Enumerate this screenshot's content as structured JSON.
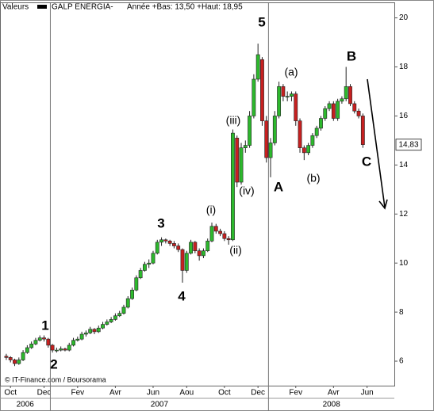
{
  "chart_data": {
    "type": "candlestick",
    "header": {
      "label": "Valeurs",
      "name": "GALP ENERGIA-",
      "range_text": "Année +Bas: 13,50 +Haut: 18,95"
    },
    "credit": "© IT-Finance.com / Boursorama",
    "last_price_label": "14,83",
    "up_color": "#2db82d",
    "down_color": "#c62020",
    "categories": [
      null,
      null,
      "Oct",
      null,
      null,
      null,
      null,
      null,
      null,
      null,
      "Dec",
      null,
      null,
      null,
      null,
      null,
      null,
      null,
      "Fev",
      null,
      null,
      null,
      null,
      null,
      null,
      null,
      null,
      "Avr",
      null,
      null,
      null,
      null,
      null,
      null,
      null,
      null,
      "Jun",
      null,
      null,
      null,
      null,
      null,
      null,
      null,
      "Aou",
      null,
      null,
      null,
      null,
      null,
      null,
      null,
      null,
      "Oct",
      null,
      null,
      null,
      null,
      null,
      null,
      null,
      "Dec",
      null,
      null,
      null,
      null,
      null,
      null,
      null,
      null,
      "Fev",
      null,
      null,
      null,
      null,
      null,
      null,
      null,
      null,
      "Avr",
      null,
      null,
      null,
      null,
      null,
      null,
      null,
      "Jun",
      null,
      null,
      null,
      null,
      null,
      null
    ],
    "x_groups": [
      {
        "label": "2006",
        "count": 12
      },
      {
        "label": "2007",
        "count": 52
      },
      {
        "label": "2008",
        "count": 30
      }
    ],
    "open": [
      null,
      6.2,
      6.15,
      6.05,
      5.9,
      6.05,
      6.35,
      6.55,
      6.7,
      6.85,
      6.95,
      6.9,
      6.65,
      6.45,
      6.45,
      6.5,
      6.45,
      6.65,
      6.85,
      6.9,
      7.1,
      7.15,
      7.3,
      7.2,
      7.35,
      7.5,
      7.6,
      7.7,
      7.85,
      7.95,
      8.2,
      8.55,
      8.9,
      9.4,
      9.7,
      9.95,
      10.0,
      10.4,
      10.85,
      10.95,
      10.9,
      10.8,
      10.7,
      10.55,
      9.7,
      10.4,
      10.85,
      10.5,
      10.3,
      10.5,
      10.9,
      11.5,
      11.3,
      11.2,
      11.0,
      10.95,
      15.1,
      13.3,
      14.7,
      14.8,
      16.0,
      17.5,
      18.3,
      15.8,
      14.3,
      14.9,
      16.0,
      17.2,
      16.8,
      16.8,
      16.9,
      15.8,
      14.7,
      14.5,
      14.8,
      15.2,
      15.5,
      15.9,
      16.3,
      16.5,
      15.9,
      16.6,
      16.7,
      17.2,
      16.5,
      16.2,
      16.0,
      null,
      null,
      null,
      null,
      null,
      null,
      null
    ],
    "high": [
      null,
      6.3,
      6.2,
      6.1,
      6.15,
      6.45,
      6.65,
      6.8,
      6.95,
      7.05,
      7.05,
      6.95,
      6.7,
      6.55,
      6.6,
      6.55,
      6.75,
      6.95,
      7.0,
      7.2,
      7.25,
      7.4,
      7.35,
      7.45,
      7.6,
      7.7,
      7.8,
      7.95,
      8.05,
      8.3,
      8.65,
      9.0,
      9.5,
      9.8,
      10.05,
      10.15,
      10.5,
      10.95,
      11.05,
      11.0,
      10.95,
      10.9,
      10.8,
      10.6,
      10.5,
      10.95,
      10.9,
      10.6,
      10.6,
      11.0,
      11.65,
      11.6,
      11.4,
      11.3,
      11.1,
      15.45,
      15.2,
      14.9,
      15.0,
      16.2,
      17.7,
      18.95,
      18.4,
      16.0,
      15.1,
      16.2,
      17.4,
      17.3,
      17.0,
      17.0,
      17.0,
      15.9,
      14.8,
      14.9,
      15.3,
      15.6,
      16.0,
      16.4,
      16.6,
      16.6,
      16.7,
      16.8,
      18.0,
      17.3,
      16.6,
      16.3,
      16.1,
      null,
      null,
      null,
      null,
      null,
      null,
      null
    ],
    "low": [
      null,
      6.05,
      5.95,
      5.8,
      5.85,
      6.0,
      6.3,
      6.5,
      6.65,
      6.8,
      6.8,
      6.55,
      6.35,
      6.35,
      6.4,
      6.4,
      6.4,
      6.6,
      6.8,
      6.85,
      7.0,
      7.1,
      7.1,
      7.15,
      7.3,
      7.45,
      7.55,
      7.65,
      7.8,
      7.9,
      8.15,
      8.5,
      8.85,
      9.35,
      9.65,
      9.8,
      9.95,
      10.35,
      10.7,
      10.8,
      10.7,
      10.6,
      10.45,
      9.2,
      9.6,
      10.35,
      10.4,
      10.1,
      10.2,
      10.45,
      10.85,
      11.2,
      11.1,
      10.9,
      10.75,
      10.9,
      13.1,
      13.2,
      14.5,
      14.7,
      15.9,
      17.4,
      15.6,
      14.1,
      13.5,
      14.8,
      15.9,
      16.6,
      16.6,
      16.6,
      15.6,
      14.5,
      14.2,
      14.4,
      14.7,
      15.1,
      15.4,
      15.8,
      16.2,
      15.8,
      15.8,
      16.5,
      16.6,
      16.4,
      16.1,
      15.9,
      14.7,
      null,
      null,
      null,
      null,
      null,
      null,
      null
    ],
    "close": [
      null,
      6.15,
      6.05,
      5.9,
      6.05,
      6.35,
      6.55,
      6.7,
      6.85,
      6.95,
      6.9,
      6.65,
      6.45,
      6.45,
      6.5,
      6.45,
      6.65,
      6.85,
      6.9,
      7.1,
      7.15,
      7.3,
      7.2,
      7.35,
      7.5,
      7.6,
      7.7,
      7.85,
      7.95,
      8.2,
      8.55,
      8.9,
      9.4,
      9.7,
      9.95,
      10.0,
      10.4,
      10.85,
      10.95,
      10.9,
      10.8,
      10.7,
      10.55,
      9.7,
      10.4,
      10.85,
      10.5,
      10.3,
      10.5,
      10.9,
      11.5,
      11.3,
      11.2,
      11.0,
      10.95,
      15.3,
      13.3,
      14.7,
      14.8,
      16.0,
      17.5,
      18.5,
      15.8,
      14.3,
      14.9,
      16.0,
      17.2,
      16.8,
      16.8,
      16.9,
      15.8,
      14.7,
      14.5,
      14.8,
      15.2,
      15.5,
      15.9,
      16.3,
      16.5,
      15.9,
      16.6,
      16.7,
      17.2,
      16.5,
      16.2,
      16.0,
      14.83,
      null,
      null,
      null,
      null,
      null,
      null,
      null
    ],
    "ylim": [
      5,
      20.6
    ],
    "yticks": [
      6,
      8,
      10,
      12,
      14,
      16,
      18,
      20
    ],
    "grid": false,
    "annotations": [
      "1",
      "2",
      "3",
      "4",
      "5",
      "(i)",
      "(ii)",
      "(iii)",
      "(iv)",
      "A",
      "B",
      "C",
      "(a)",
      "(b)"
    ]
  }
}
